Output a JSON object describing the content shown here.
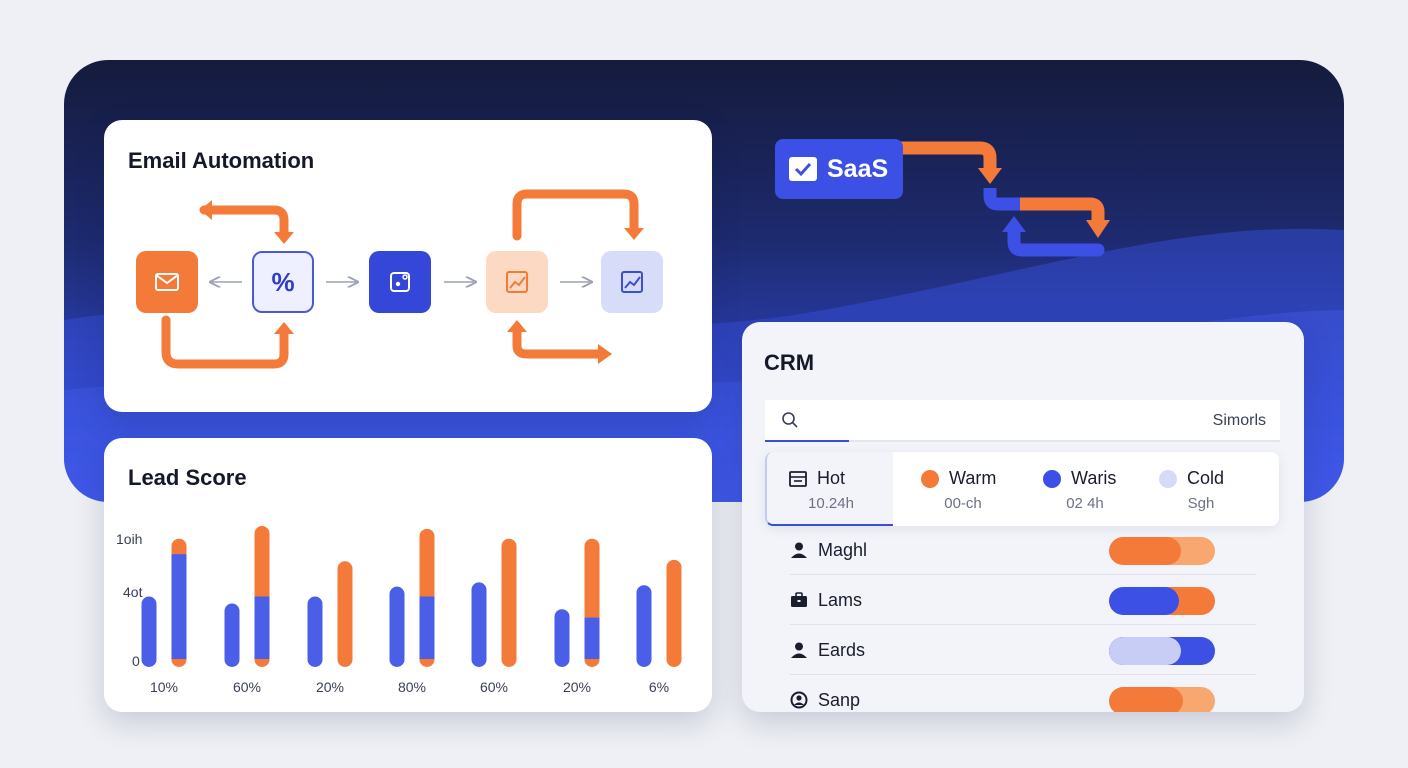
{
  "email_automation": {
    "title": "Email Automation",
    "nodes": [
      {
        "name": "mail-icon",
        "color": "#f47a3a"
      },
      {
        "name": "percent-icon",
        "label": "%",
        "color": "#eef0ff"
      },
      {
        "name": "dashboard-icon",
        "color": "#3547d8"
      },
      {
        "name": "chart-icon",
        "color": "#fcd9c3"
      },
      {
        "name": "chart-icon",
        "color": "#d7dcf9"
      }
    ]
  },
  "saas": {
    "label": "SaaS",
    "icon": "check-icon"
  },
  "lead_score": {
    "title": "Lead Score",
    "y_ticks": [
      "1oih",
      "4ot",
      "0"
    ]
  },
  "chart_data": {
    "type": "bar",
    "title": "Lead Score",
    "categories": [
      "10%",
      "60%",
      "20%",
      "80%",
      "60%",
      "20%",
      "6%"
    ],
    "ylim": [
      0,
      100
    ],
    "series": [
      {
        "color": "#4a5ee8",
        "values": [
          50,
          45,
          50,
          57,
          60,
          41,
          58
        ]
      },
      {
        "color": "#f47a3a",
        "stack_blue": [
          80,
          50,
          0,
          50,
          0,
          35,
          0
        ],
        "values": [
          91,
          100,
          75,
          98,
          91,
          91,
          76
        ]
      }
    ]
  },
  "crm": {
    "title": "CRM",
    "search": {
      "label": "Simorls"
    },
    "tabs": [
      {
        "label": "Hot",
        "sub": "10.24h",
        "icon": "inbox-icon"
      },
      {
        "label": "Warm",
        "sub": "00-ch",
        "color": "#f47a3a"
      },
      {
        "label": "Waris",
        "sub": "02 4h",
        "color": "#3d50e6"
      },
      {
        "label": "Cold",
        "sub": "Sgh",
        "color": "#d5daf8"
      }
    ],
    "rows": [
      {
        "name": "Maghl",
        "icon": "person-icon",
        "fill": 0.68,
        "base": "#f8a771",
        "fill_color": "#f47a3a"
      },
      {
        "name": "Lams",
        "icon": "briefcase-icon",
        "fill": 0.66,
        "base": "#f47a3a",
        "fill_color": "#3d50e6"
      },
      {
        "name": "Eards",
        "icon": "person-icon",
        "fill": 0.68,
        "base": "#3d50e6",
        "fill_color": "#c8cdf6"
      },
      {
        "name": "Sanp",
        "icon": "user-circle-icon",
        "fill": 0.7,
        "base": "#f8a771",
        "fill_color": "#f47a3a"
      }
    ]
  }
}
